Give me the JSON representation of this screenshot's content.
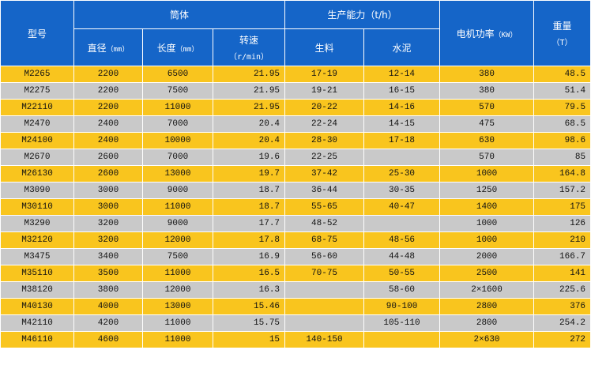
{
  "headers": {
    "model": "型号",
    "cylinder": "筒体",
    "diameter": "直径",
    "diameter_unit": "（mm）",
    "length": "长度",
    "length_unit": "（mm）",
    "speed": "转速",
    "speed_unit": "（r/min）",
    "capacity": "生产能力（t/h）",
    "raw_material": "生料",
    "cement": "水泥",
    "motor_power": "电机功率",
    "motor_power_unit": "（KW）",
    "weight": "重量",
    "weight_unit": "（T）"
  },
  "colors": {
    "header_bg": "#1565c8",
    "row_yellow": "#f9c51e",
    "row_gray": "#c9c9c9"
  },
  "rows": [
    {
      "model": "M2265",
      "diameter": "2200",
      "length": "6500",
      "speed": "21.95",
      "raw": "17-19",
      "cement": "12-14",
      "power": "380",
      "weight": "48.5"
    },
    {
      "model": "M2275",
      "diameter": "2200",
      "length": "7500",
      "speed": "21.95",
      "raw": "19-21",
      "cement": "16-15",
      "power": "380",
      "weight": "51.4"
    },
    {
      "model": "M22110",
      "diameter": "2200",
      "length": "11000",
      "speed": "21.95",
      "raw": "20-22",
      "cement": "14-16",
      "power": "570",
      "weight": "79.5"
    },
    {
      "model": "M2470",
      "diameter": "2400",
      "length": "7000",
      "speed": "20.4",
      "raw": "22-24",
      "cement": "14-15",
      "power": "475",
      "weight": "68.5"
    },
    {
      "model": "M24100",
      "diameter": "2400",
      "length": "10000",
      "speed": "20.4",
      "raw": "28-30",
      "cement": "17-18",
      "power": "630",
      "weight": "98.6"
    },
    {
      "model": "M2670",
      "diameter": "2600",
      "length": "7000",
      "speed": "19.6",
      "raw": "22-25",
      "cement": "",
      "power": "570",
      "weight": "85"
    },
    {
      "model": "M26130",
      "diameter": "2600",
      "length": "13000",
      "speed": "19.7",
      "raw": "37-42",
      "cement": "25-30",
      "power": "1000",
      "weight": "164.8"
    },
    {
      "model": "M3090",
      "diameter": "3000",
      "length": "9000",
      "speed": "18.7",
      "raw": "36-44",
      "cement": "30-35",
      "power": "1250",
      "weight": "157.2"
    },
    {
      "model": "M30110",
      "diameter": "3000",
      "length": "11000",
      "speed": "18.7",
      "raw": "55-65",
      "cement": "40-47",
      "power": "1400",
      "weight": "175"
    },
    {
      "model": "M3290",
      "diameter": "3200",
      "length": "9000",
      "speed": "17.7",
      "raw": "48-52",
      "cement": "",
      "power": "1000",
      "weight": "126"
    },
    {
      "model": "M32120",
      "diameter": "3200",
      "length": "12000",
      "speed": "17.8",
      "raw": "68-75",
      "cement": "48-56",
      "power": "1000",
      "weight": "210"
    },
    {
      "model": "M3475",
      "diameter": "3400",
      "length": "7500",
      "speed": "16.9",
      "raw": "56-60",
      "cement": "44-48",
      "power": "2000",
      "weight": "166.7"
    },
    {
      "model": "M35110",
      "diameter": "3500",
      "length": "11000",
      "speed": "16.5",
      "raw": "70-75",
      "cement": "50-55",
      "power": "2500",
      "weight": "141"
    },
    {
      "model": "M38120",
      "diameter": "3800",
      "length": "12000",
      "speed": "16.3",
      "raw": "",
      "cement": "58-60",
      "power": "2×1600",
      "weight": "225.6"
    },
    {
      "model": "M40130",
      "diameter": "4000",
      "length": "13000",
      "speed": "15.46",
      "raw": "",
      "cement": "90-100",
      "power": "2800",
      "weight": "376"
    },
    {
      "model": "M42110",
      "diameter": "4200",
      "length": "11000",
      "speed": "15.75",
      "raw": "",
      "cement": "105-110",
      "power": "2800",
      "weight": "254.2"
    },
    {
      "model": "M46110",
      "diameter": "4600",
      "length": "11000",
      "speed": "15",
      "raw": "140-150",
      "cement": "",
      "power": "2×630",
      "weight": "272"
    }
  ]
}
